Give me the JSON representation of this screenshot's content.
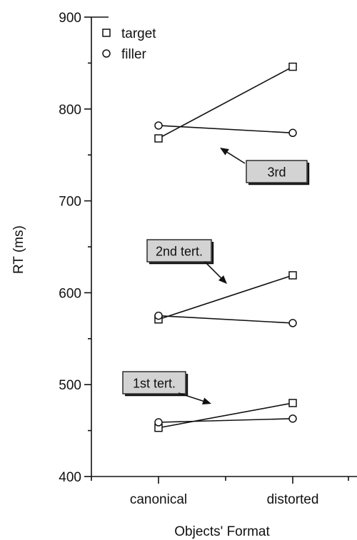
{
  "chart_data": {
    "type": "line",
    "xlabel": "Objects' Format",
    "ylabel": "RT (ms)",
    "categories": [
      "canonical",
      "distorted"
    ],
    "ylim": [
      400,
      900
    ],
    "yticks": [
      400,
      500,
      600,
      700,
      800,
      900
    ],
    "legend": {
      "placement": "top-left",
      "entries": [
        {
          "name": "target",
          "marker": "square"
        },
        {
          "name": "filler",
          "marker": "circle"
        }
      ]
    },
    "series": [
      {
        "name": "target",
        "group": "1st tert.",
        "marker": "square",
        "values": [
          453,
          480
        ]
      },
      {
        "name": "filler",
        "group": "1st tert.",
        "marker": "circle",
        "values": [
          459,
          463
        ]
      },
      {
        "name": "target",
        "group": "2nd tert.",
        "marker": "square",
        "values": [
          571,
          619
        ]
      },
      {
        "name": "filler",
        "group": "2nd tert.",
        "marker": "circle",
        "values": [
          575,
          567
        ]
      },
      {
        "name": "target",
        "group": "3rd",
        "marker": "square",
        "values": [
          768,
          846
        ]
      },
      {
        "name": "filler",
        "group": "3rd",
        "marker": "circle",
        "values": [
          782,
          774
        ]
      }
    ],
    "annotations": [
      {
        "text": "1st tert."
      },
      {
        "text": "2nd tert."
      },
      {
        "text": "3rd"
      }
    ]
  }
}
